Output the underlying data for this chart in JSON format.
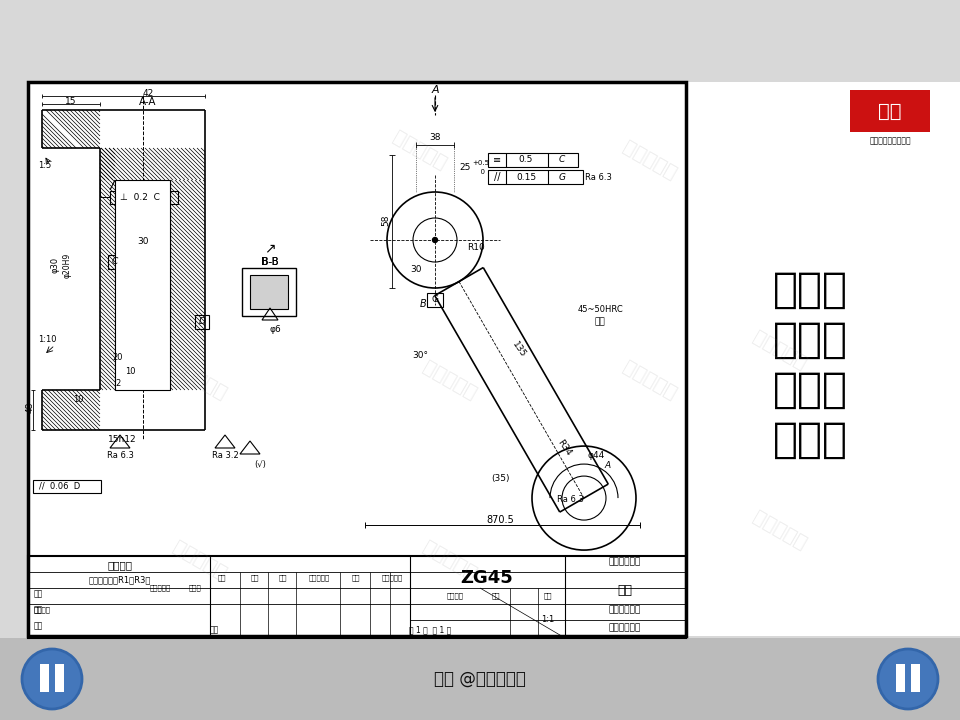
{
  "bg_color": "#d8d8d8",
  "drawing_bg": "#ffffff",
  "material": "ZG45",
  "part_name": "泵盖",
  "tech_line1": "技术要求",
  "tech_line2": "未注铸造圆角R1～R3。",
  "logo_text": "一位",
  "logo_sub": "头条号：一位工程师",
  "watermark": "一位工程师",
  "bottom_text": "头条 @一位工程师",
  "title_cn1": "粗点画",
  "title_cn2": "线：限",
  "title_cn3": "定范围",
  "title_cn4": "表示线",
  "unit_name": "（单位名称）",
  "drawing_code": "（图样代号）",
  "proj_symbol": "（投影符号）"
}
